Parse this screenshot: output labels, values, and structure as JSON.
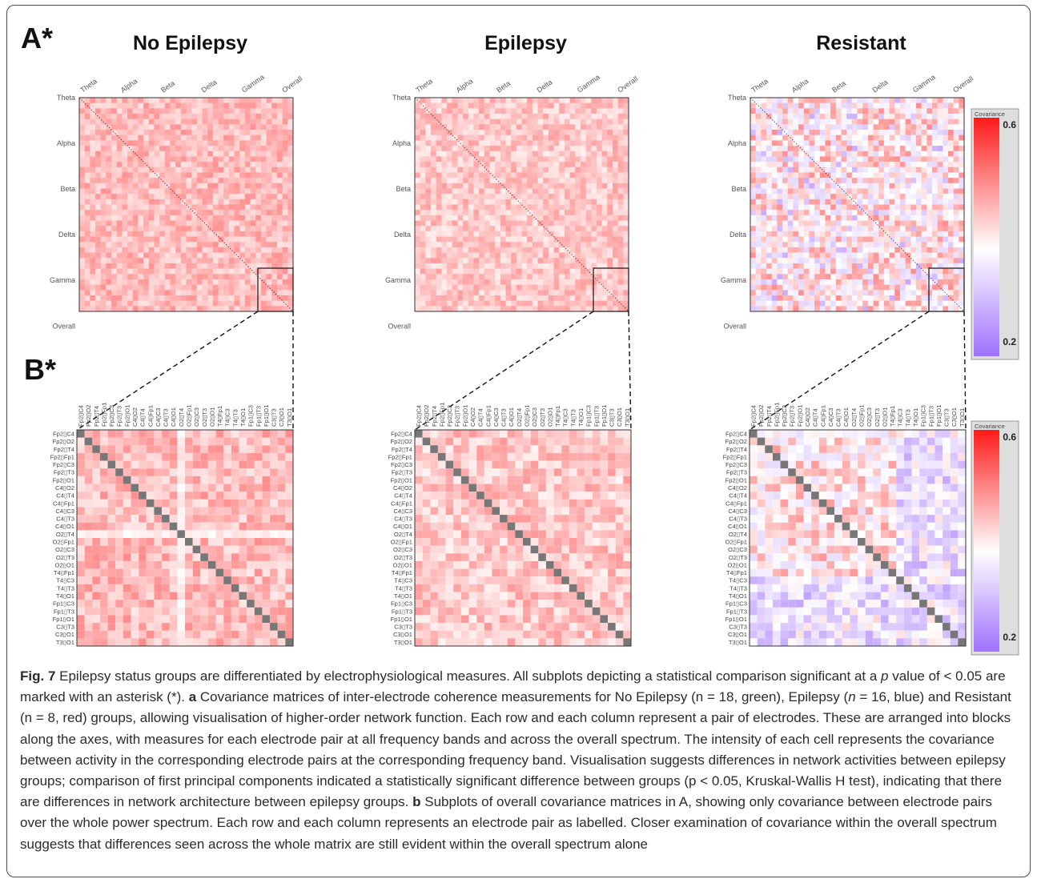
{
  "panel_labels": {
    "a": "A*",
    "b": "B*"
  },
  "group_titles": [
    "No Epilepsy",
    "Epilepsy",
    "Resistant"
  ],
  "band_labels": [
    "Theta",
    "Alpha",
    "Beta",
    "Delta",
    "Gamma",
    "Overall"
  ],
  "electrode_pair_labels": [
    "Fp2▯C4",
    "Fp2▯O2",
    "Fp2▯T4",
    "Fp2▯Fp1",
    "Fp2▯C3",
    "Fp2▯T3",
    "Fp2▯O1",
    "C4▯O2",
    "C4▯T4",
    "C4▯Fp1",
    "C4▯C3",
    "C4▯T3",
    "C4▯O1",
    "O2▯T4",
    "O2▯Fp1",
    "O2▯C3",
    "O2▯T3",
    "O2▯O1",
    "T4▯Fp1",
    "T4▯C3",
    "T4▯T3",
    "T4▯O1",
    "Fp1▯C3",
    "Fp1▯T3",
    "Fp1▯O1",
    "C3▯T3",
    "C3▯O1",
    "T3▯O1"
  ],
  "colorbar": {
    "title": "Covariance",
    "max_label": "0.6",
    "min_label": "0.2"
  },
  "colors": {
    "high": "#ff1a1a",
    "mid": "#ffffff",
    "low": "#a070ff",
    "diag": "#777777"
  },
  "chart_data": [
    {
      "type": "heatmap",
      "title": "No Epilepsy",
      "panel": "A",
      "x_categories": [
        "Theta",
        "Alpha",
        "Beta",
        "Delta",
        "Gamma",
        "Overall"
      ],
      "y_categories": [
        "Theta",
        "Alpha",
        "Beta",
        "Delta",
        "Gamma",
        "Overall"
      ],
      "colorbar_range": [
        0.2,
        0.6
      ],
      "mean_offdiag_covariance": 0.46
    },
    {
      "type": "heatmap",
      "title": "Epilepsy",
      "panel": "A",
      "x_categories": [
        "Theta",
        "Alpha",
        "Beta",
        "Delta",
        "Gamma",
        "Overall"
      ],
      "y_categories": [
        "Theta",
        "Alpha",
        "Beta",
        "Delta",
        "Gamma",
        "Overall"
      ],
      "colorbar_range": [
        0.2,
        0.6
      ],
      "mean_offdiag_covariance": 0.45
    },
    {
      "type": "heatmap",
      "title": "Resistant",
      "panel": "A",
      "x_categories": [
        "Theta",
        "Alpha",
        "Beta",
        "Delta",
        "Gamma",
        "Overall"
      ],
      "y_categories": [
        "Theta",
        "Alpha",
        "Beta",
        "Delta",
        "Gamma",
        "Overall"
      ],
      "colorbar_range": [
        0.2,
        0.6
      ],
      "mean_offdiag_covariance": 0.42
    },
    {
      "type": "heatmap",
      "title": "No Epilepsy",
      "panel": "B",
      "band": "Overall",
      "x_categories": "electrode_pair_labels",
      "y_categories": "electrode_pair_labels",
      "colorbar_range": [
        0.2,
        0.6
      ],
      "mean_offdiag_covariance": 0.46
    },
    {
      "type": "heatmap",
      "title": "Epilepsy",
      "panel": "B",
      "band": "Overall",
      "x_categories": "electrode_pair_labels",
      "y_categories": "electrode_pair_labels",
      "colorbar_range": [
        0.2,
        0.6
      ],
      "mean_offdiag_covariance": 0.45
    },
    {
      "type": "heatmap",
      "title": "Resistant",
      "panel": "B",
      "band": "Overall",
      "x_categories": "electrode_pair_labels",
      "y_categories": "electrode_pair_labels",
      "colorbar_range": [
        0.2,
        0.6
      ],
      "mean_offdiag_covariance": 0.42
    }
  ],
  "caption": {
    "fig_label": "Fig. 7",
    "part1": " Epilepsy status groups are differentiated by electrophysiological measures. All subplots depicting a statistical comparison significant at a ",
    "p_italic": "p",
    "part2": " value of < 0.05 are marked with an asterisk (*). ",
    "a_label": "a",
    "part3": " Covariance matrices of inter-electrode coherence measurements for No Epilepsy (n = 18, green), Epilepsy (",
    "n_italic": "n",
    "part4": " = 16, blue) and Resistant (n = 8, red) groups, allowing visualisation of higher-order network function. Each row and each column represent a pair of electrodes. These are arranged into blocks along the axes, with measures for each electrode pair at all frequency bands and across the overall spectrum. The intensity of each cell represents the covariance between activity in the corresponding electrode pairs at the corresponding frequency band. Visualisation suggests differences in network activities between epilepsy groups; comparison of first principal components indicated a statistically significant difference between groups (p < 0.05, Kruskal-Wallis H test), indicating that there are differences in network architecture between epilepsy groups. ",
    "b_label": "b",
    "part5": " Subplots of overall covariance matrices in A, showing only covariance between electrode pairs over the whole power spectrum. Each row and each column represents an electrode pair as labelled. Closer examination of covariance within the overall spectrum suggests that differences seen across the whole matrix are still evident within the overall spectrum alone"
  }
}
